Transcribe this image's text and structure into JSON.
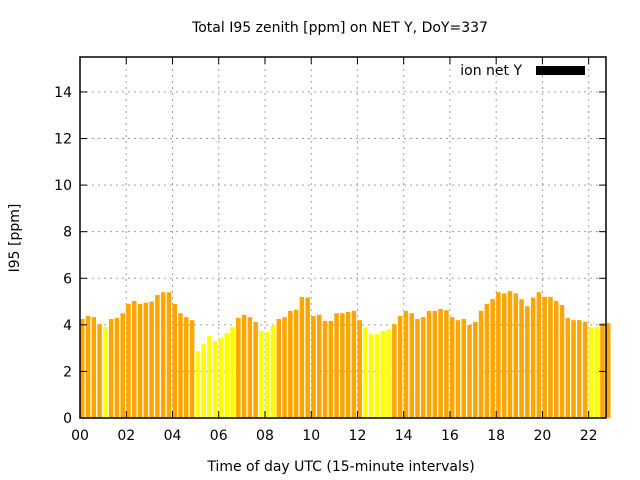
{
  "chart_data": {
    "type": "bar",
    "title": "Total I95 zenith [ppm] on NET Y, DoY=337",
    "xlabel": "Time of day UTC (15-minute intervals)",
    "ylabel": "I95 [ppm]",
    "xlim": [
      0,
      22.75
    ],
    "ylim": [
      0,
      15.5
    ],
    "xticks": [
      0,
      2,
      4,
      6,
      8,
      10,
      12,
      14,
      16,
      18,
      20,
      22
    ],
    "xtick_labels": [
      "00",
      "02",
      "04",
      "06",
      "08",
      "10",
      "12",
      "14",
      "16",
      "18",
      "20",
      "22"
    ],
    "yticks": [
      0,
      2,
      4,
      6,
      8,
      10,
      12,
      14
    ],
    "ytick_labels": [
      "0",
      "2",
      "4",
      "6",
      "8",
      "10",
      "12",
      "14"
    ],
    "grid": true,
    "legend": {
      "label": "ion net Y",
      "placement": "top-right",
      "color": "#000000"
    },
    "interval_hours": 0.25,
    "colors": {
      "normal": "#ffa500",
      "low": "#ffff00"
    },
    "values": [
      4.25,
      4.38,
      4.33,
      4.03,
      3.9,
      4.25,
      4.3,
      4.5,
      4.9,
      5.02,
      4.9,
      4.95,
      5.0,
      5.28,
      5.4,
      5.4,
      4.9,
      4.5,
      4.33,
      4.2,
      2.87,
      3.18,
      3.52,
      3.3,
      3.43,
      3.65,
      3.9,
      4.3,
      4.43,
      4.33,
      4.12,
      3.73,
      3.7,
      3.95,
      4.25,
      4.33,
      4.6,
      4.65,
      5.2,
      5.17,
      4.38,
      4.43,
      4.17,
      4.17,
      4.5,
      4.5,
      4.55,
      4.6,
      4.2,
      3.88,
      3.6,
      3.6,
      3.73,
      3.8,
      4.03,
      4.38,
      4.6,
      4.5,
      4.25,
      4.33,
      4.6,
      4.6,
      4.68,
      4.63,
      4.33,
      4.2,
      4.25,
      4.0,
      4.12,
      4.6,
      4.9,
      5.1,
      5.4,
      5.35,
      5.45,
      5.35,
      5.1,
      4.8,
      5.17,
      5.4,
      5.2,
      5.2,
      5.02,
      4.85,
      4.3,
      4.2,
      4.2,
      4.12,
      3.88,
      3.9,
      4.07,
      4.07
    ],
    "low_flags": [
      0,
      0,
      0,
      0,
      1,
      0,
      0,
      0,
      0,
      0,
      0,
      0,
      0,
      0,
      0,
      0,
      0,
      0,
      0,
      0,
      1,
      1,
      1,
      1,
      1,
      1,
      1,
      0,
      0,
      0,
      0,
      1,
      1,
      1,
      0,
      0,
      0,
      0,
      0,
      0,
      0,
      0,
      0,
      0,
      0,
      0,
      0,
      0,
      0,
      1,
      1,
      1,
      1,
      1,
      0,
      0,
      0,
      0,
      0,
      0,
      0,
      0,
      0,
      0,
      0,
      0,
      0,
      0,
      0,
      0,
      0,
      0,
      0,
      0,
      0,
      0,
      0,
      0,
      0,
      0,
      0,
      0,
      0,
      0,
      0,
      0,
      0,
      0,
      1,
      1,
      0,
      0
    ]
  }
}
